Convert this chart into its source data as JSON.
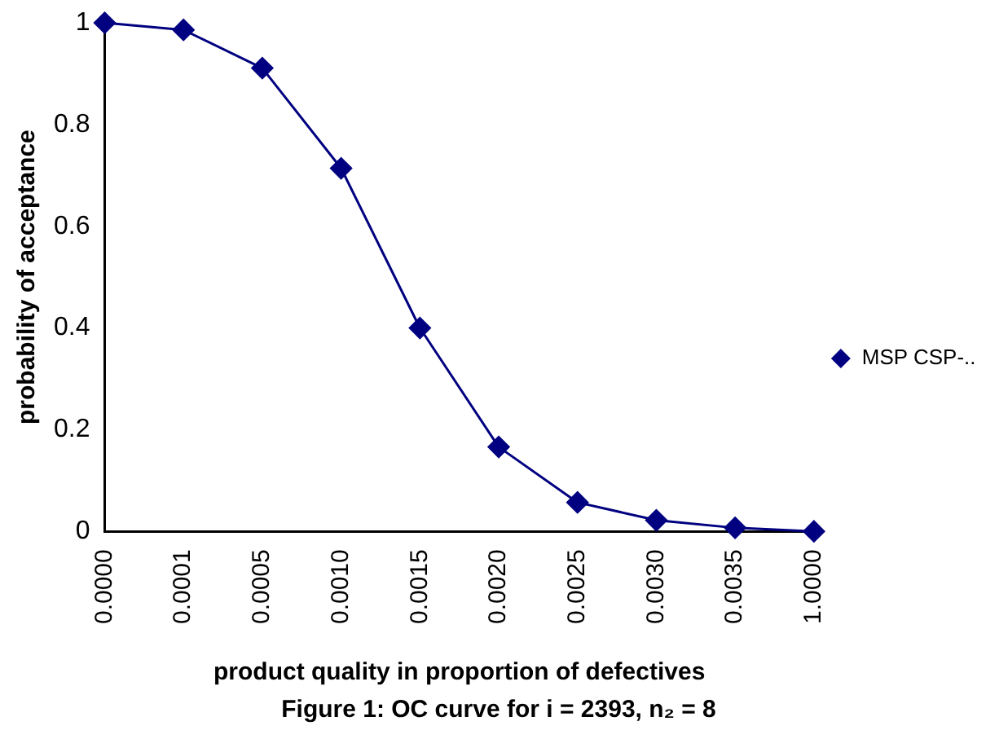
{
  "chart_data": {
    "type": "line",
    "xlabel": "product quality in proportion of defectives",
    "ylabel": "probability of acceptance",
    "categories": [
      "0.0000",
      "0.0001",
      "0.0005",
      "0.0010",
      "0.0015",
      "0.0020",
      "0.0025",
      "0.0030",
      "0.0035",
      "1.0000"
    ],
    "series": [
      {
        "name": "MSP CSP-..",
        "color": "#000080",
        "values": [
          1,
          0.986,
          0.911,
          0.714,
          0.4,
          0.166,
          0.057,
          0.022,
          0.007,
          0
        ]
      }
    ],
    "ylim": [
      0,
      1
    ],
    "yticks": [
      0,
      0.2,
      0.4,
      0.6,
      0.8,
      1
    ],
    "grid": false,
    "legend": "right",
    "marker": "diamond",
    "line_style": "solid",
    "annotations": [
      "Figure 1: OC curve for i = 2393, n₂ = 8"
    ]
  }
}
